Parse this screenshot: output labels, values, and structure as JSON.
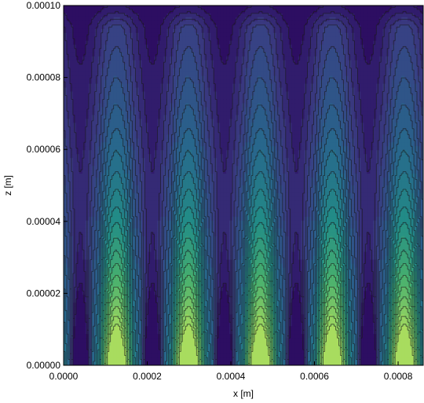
{
  "chart_data": {
    "type": "heatmap",
    "subtype": "filled-contour",
    "title": "",
    "xlabel": "x [m]",
    "ylabel": "z [m]",
    "xlim": [
      0,
      0.00086
    ],
    "ylim": [
      0,
      0.0001
    ],
    "xticks": [
      "0.0000",
      "0.0002",
      "0.0004",
      "0.0006",
      "0.0008"
    ],
    "xtick_values": [
      0,
      0.0002,
      0.0004,
      0.0006,
      0.0008
    ],
    "yticks": [
      "0.00000",
      "0.00002",
      "0.00004",
      "0.00006",
      "0.00008",
      "0.00010"
    ],
    "ytick_values": [
      0,
      2e-05,
      4e-05,
      6e-05,
      8e-05,
      0.0001
    ],
    "colormap": "viridis",
    "colormap_range": [
      "#2d0e62",
      "#a8dc5f"
    ],
    "contour_line_color": "#1a1a1a",
    "periodicity": {
      "period_x": 0.000172,
      "bright_band_centers_x": [
        0.0001265,
        0.0002985,
        0.0004705,
        0.0006425,
        0.0008145
      ],
      "dark_gap_centers_x": [
        4.05e-05,
        0.0002125,
        0.0003845,
        0.0005565,
        0.0007285
      ],
      "bright_band_halfwidth_x": 4.05e-05
    },
    "top_dark_band_z": 9.4e-05,
    "grid": false,
    "legend": "none"
  }
}
